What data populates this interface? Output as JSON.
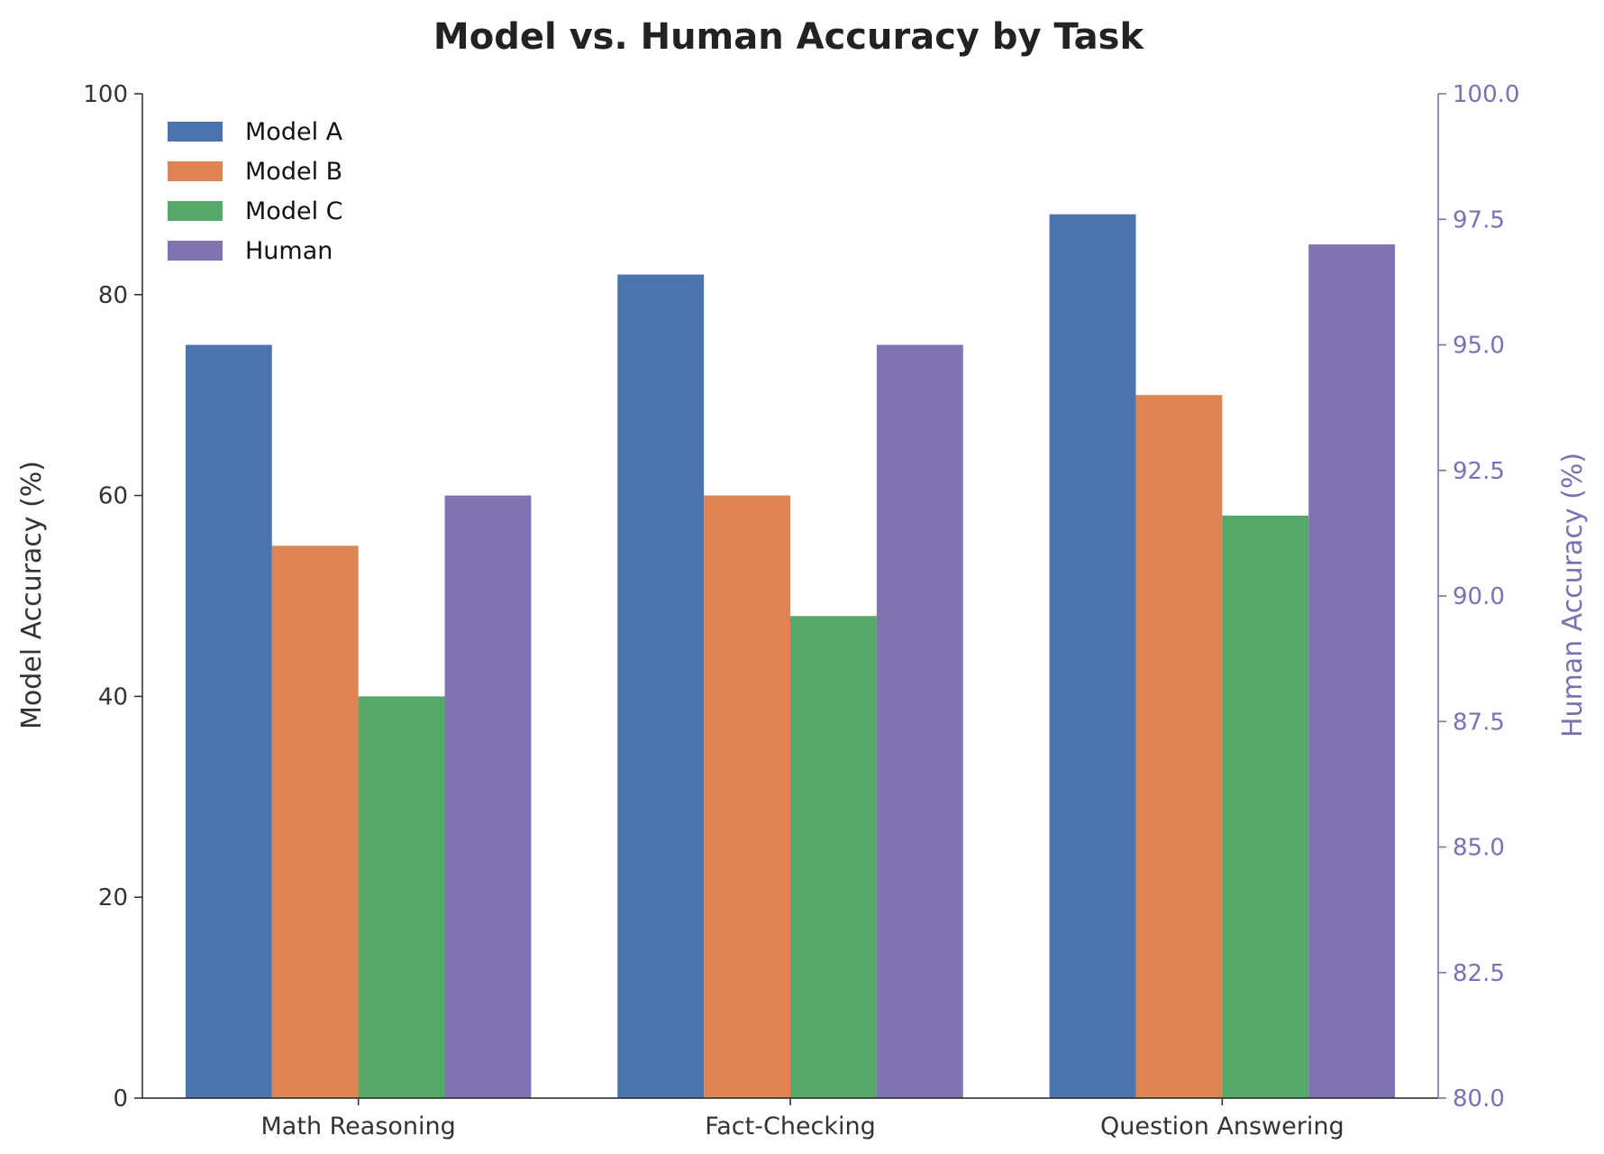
{
  "chart_data": {
    "type": "bar",
    "title": "Model vs. Human Accuracy by Task",
    "categories": [
      "Math Reasoning",
      "Fact-Checking",
      "Question Answering"
    ],
    "series": [
      {
        "name": "Model A",
        "axis": "left",
        "color": "#4c72b0",
        "values": [
          75,
          82,
          88
        ]
      },
      {
        "name": "Model B",
        "axis": "left",
        "color": "#dd8452",
        "values": [
          55,
          60,
          70
        ]
      },
      {
        "name": "Model C",
        "axis": "left",
        "color": "#55a868",
        "values": [
          40,
          48,
          58
        ]
      },
      {
        "name": "Human",
        "axis": "right",
        "color": "#8172b2",
        "values": [
          92,
          95,
          97
        ]
      }
    ],
    "ylabel": "Model Accuracy (%)",
    "ylim": [
      0,
      100
    ],
    "yticks": [
      "0",
      "20",
      "40",
      "60",
      "80",
      "100"
    ],
    "y2label": "Human Accuracy (%)",
    "y2lim": [
      80,
      100
    ],
    "y2ticks": [
      "80.0",
      "82.5",
      "85.0",
      "87.5",
      "90.0",
      "92.5",
      "95.0",
      "97.5",
      "100.0"
    ],
    "y2color": "#7a72b0",
    "legend_position": "upper-left",
    "grid": false
  }
}
